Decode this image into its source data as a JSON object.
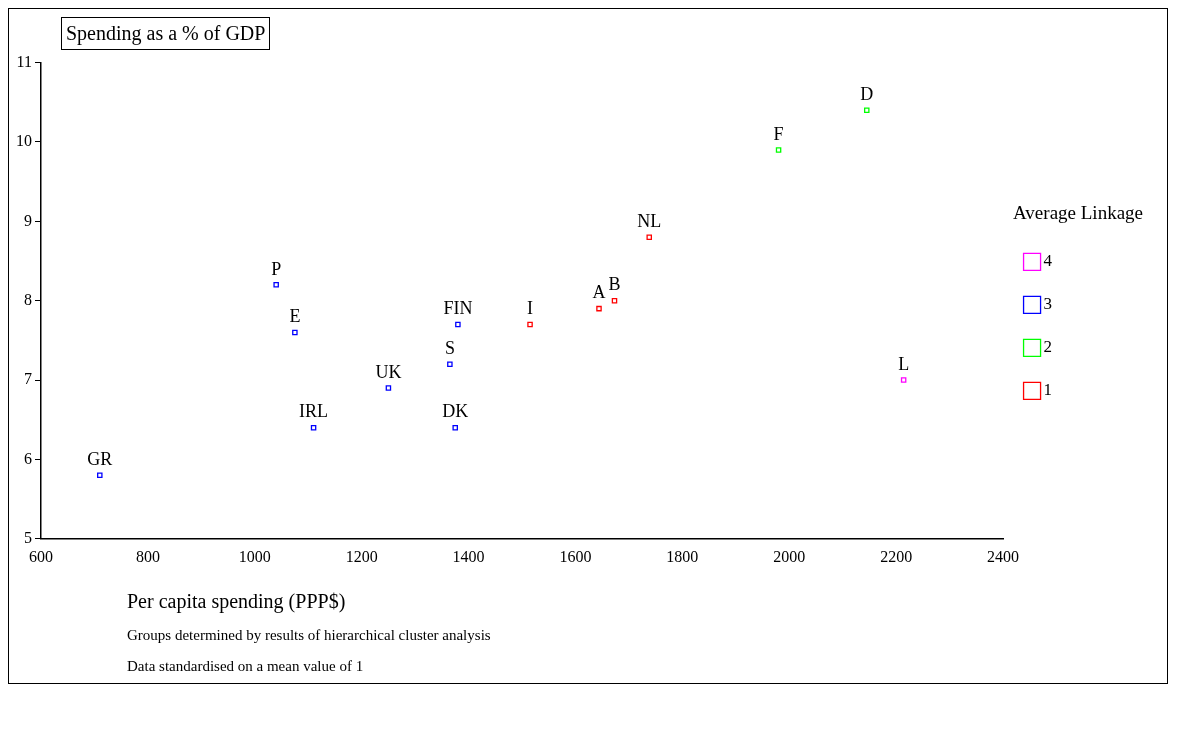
{
  "chart_data": {
    "type": "scatter",
    "ylabel": "Spending as a % of GDP",
    "xlabel": "Per capita spending (PPP$)",
    "legend_title": "Average Linkage",
    "legend": "right",
    "marker": "square",
    "grid": false,
    "xlim": [
      600,
      2400
    ],
    "xticks": [
      600,
      800,
      1000,
      1200,
      1400,
      1600,
      1800,
      2000,
      2200,
      2400
    ],
    "ylim": [
      5,
      11
    ],
    "yticks": [
      5,
      6,
      7,
      8,
      9,
      10,
      11
    ],
    "series": [
      {
        "name": "4",
        "color": "#ff00ff",
        "x": [
          2214
        ],
        "values": [
          7.0
        ]
      },
      {
        "name": "3",
        "color": "#0000ff",
        "x": [
          710,
          1040,
          1075,
          1110,
          1250,
          1365,
          1380,
          1375
        ],
        "values": [
          5.8,
          8.2,
          7.6,
          6.4,
          6.9,
          7.2,
          7.7,
          6.4
        ]
      },
      {
        "name": "2",
        "color": "#00ff00",
        "x": [
          1980,
          2145
        ],
        "values": [
          9.9,
          10.4
        ]
      },
      {
        "name": "1",
        "color": "#ff0000",
        "x": [
          1515,
          1644,
          1673,
          1738
        ],
        "values": [
          7.7,
          7.9,
          8.0,
          8.8
        ]
      }
    ],
    "annotations": [
      {
        "text": "L",
        "x": 2214,
        "y": 7.0
      },
      {
        "text": "GR",
        "x": 710,
        "y": 5.8
      },
      {
        "text": "P",
        "x": 1040,
        "y": 8.2
      },
      {
        "text": "E",
        "x": 1075,
        "y": 7.6
      },
      {
        "text": "IRL",
        "x": 1110,
        "y": 6.4
      },
      {
        "text": "UK",
        "x": 1250,
        "y": 6.9
      },
      {
        "text": "S",
        "x": 1365,
        "y": 7.2
      },
      {
        "text": "FIN",
        "x": 1380,
        "y": 7.7
      },
      {
        "text": "DK",
        "x": 1375,
        "y": 6.4
      },
      {
        "text": "F",
        "x": 1980,
        "y": 9.9
      },
      {
        "text": "D",
        "x": 2145,
        "y": 10.4
      },
      {
        "text": "I",
        "x": 1515,
        "y": 7.7
      },
      {
        "text": "A",
        "x": 1644,
        "y": 7.9
      },
      {
        "text": "B",
        "x": 1673,
        "y": 8.0
      },
      {
        "text": "NL",
        "x": 1738,
        "y": 8.8
      },
      "Groups determined by results of hierarchical cluster analysis",
      "Data standardised on a mean value of 1"
    ]
  }
}
